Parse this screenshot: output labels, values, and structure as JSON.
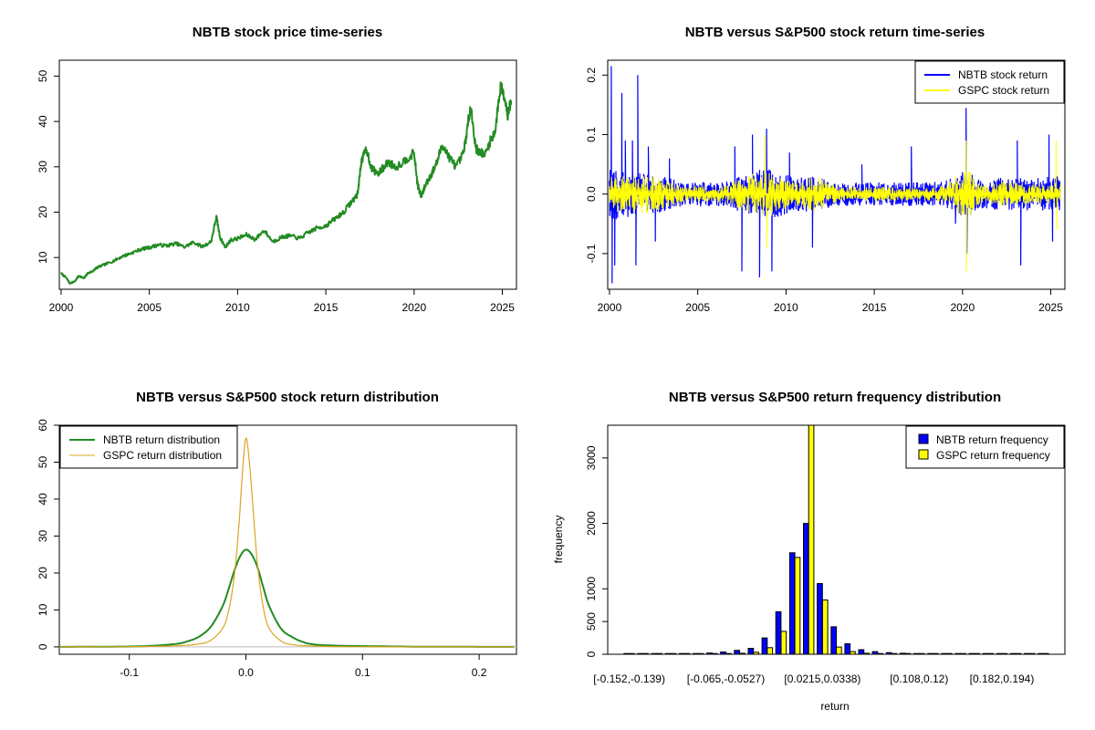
{
  "chart_data": [
    {
      "id": "price",
      "type": "line",
      "title": "NBTB stock price time-series",
      "xlabel": "",
      "ylabel": "",
      "xlim": [
        1999.9,
        2025.8
      ],
      "ylim": [
        3,
        53.5
      ],
      "xticks": [
        2000,
        2005,
        2010,
        2015,
        2020,
        2025
      ],
      "yticks": [
        10,
        20,
        30,
        40,
        50
      ],
      "color": "#228B22",
      "series": [
        {
          "x": [
            2000.0,
            2000.3,
            2000.5,
            2000.8,
            2001.0,
            2001.3,
            2001.5,
            2001.8,
            2002.0,
            2002.5,
            2003.0,
            2003.5,
            2004.0,
            2004.5,
            2005.0,
            2005.5,
            2006.0,
            2006.5,
            2007.0,
            2007.5,
            2008.0,
            2008.5,
            2008.8,
            2009.0,
            2009.3,
            2009.6,
            2010.0,
            2010.5,
            2011.0,
            2011.5,
            2012.0,
            2012.5,
            2013.0,
            2013.5,
            2014.0,
            2014.5,
            2015.0,
            2015.5,
            2016.0,
            2016.5,
            2016.8,
            2017.0,
            2017.3,
            2017.6,
            2018.0,
            2018.5,
            2019.0,
            2019.5,
            2020.0,
            2020.2,
            2020.4,
            2020.7,
            2021.0,
            2021.3,
            2021.6,
            2022.0,
            2022.4,
            2022.8,
            2023.0,
            2023.2,
            2023.5,
            2024.0,
            2024.3,
            2024.6,
            2024.9,
            2025.1,
            2025.3,
            2025.5
          ],
          "y": [
            6.5,
            5.5,
            4.3,
            4.8,
            6.0,
            5.4,
            6.5,
            7.0,
            7.7,
            8.5,
            9.3,
            10.3,
            11.0,
            11.8,
            12.2,
            12.8,
            12.6,
            13.1,
            12.3,
            13.4,
            12.4,
            13.5,
            19.0,
            14.5,
            12.3,
            13.8,
            14.2,
            15.0,
            14.0,
            16.0,
            13.5,
            14.5,
            14.8,
            14.2,
            15.5,
            16.5,
            17.0,
            18.5,
            20.0,
            22.5,
            24.0,
            31.0,
            34.0,
            29.5,
            28.5,
            31.0,
            30.0,
            31.5,
            33.0,
            26.0,
            23.5,
            26.5,
            28.5,
            31.0,
            35.0,
            32.0,
            30.0,
            33.0,
            38.0,
            43.5,
            34.0,
            32.5,
            35.5,
            38.0,
            48.0,
            46.0,
            41.5,
            44.5
          ]
        }
      ]
    },
    {
      "id": "returns",
      "type": "line",
      "title": "NBTB versus S&P500 stock return time-series",
      "xlabel": "",
      "ylabel": "",
      "xlim": [
        1999.9,
        2025.8
      ],
      "ylim": [
        -0.16,
        0.225
      ],
      "xticks": [
        2000,
        2005,
        2010,
        2015,
        2020,
        2025
      ],
      "yticks": [
        -0.1,
        0.0,
        0.1,
        0.2
      ],
      "legend": {
        "position": "top-right"
      },
      "series": [
        {
          "name": "NBTB stock return",
          "color": "#0000FF"
        },
        {
          "name": "GSPC stock return",
          "color": "#FFFF00"
        }
      ],
      "spikes": [
        {
          "series": 0,
          "x": 2000.1,
          "y": 0.215
        },
        {
          "series": 0,
          "x": 2000.15,
          "y": -0.15
        },
        {
          "series": 0,
          "x": 2000.3,
          "y": -0.12
        },
        {
          "series": 0,
          "x": 2000.7,
          "y": 0.17
        },
        {
          "series": 0,
          "x": 2000.9,
          "y": 0.09
        },
        {
          "series": 0,
          "x": 2001.3,
          "y": 0.09
        },
        {
          "series": 0,
          "x": 2001.5,
          "y": -0.12
        },
        {
          "series": 0,
          "x": 2001.6,
          "y": 0.2
        },
        {
          "series": 0,
          "x": 2002.2,
          "y": 0.08
        },
        {
          "series": 0,
          "x": 2002.6,
          "y": -0.08
        },
        {
          "series": 0,
          "x": 2003.4,
          "y": 0.06
        },
        {
          "series": 0,
          "x": 2007.1,
          "y": 0.08
        },
        {
          "series": 0,
          "x": 2007.5,
          "y": -0.13
        },
        {
          "series": 0,
          "x": 2008.1,
          "y": 0.1
        },
        {
          "series": 0,
          "x": 2008.5,
          "y": -0.14
        },
        {
          "series": 0,
          "x": 2008.9,
          "y": 0.11
        },
        {
          "series": 0,
          "x": 2009.2,
          "y": -0.13
        },
        {
          "series": 0,
          "x": 2010.2,
          "y": 0.07
        },
        {
          "series": 0,
          "x": 2011.5,
          "y": -0.09
        },
        {
          "series": 0,
          "x": 2014.3,
          "y": 0.05
        },
        {
          "series": 0,
          "x": 2017.1,
          "y": 0.08
        },
        {
          "series": 0,
          "x": 2019.6,
          "y": -0.05
        },
        {
          "series": 0,
          "x": 2020.2,
          "y": 0.145
        },
        {
          "series": 0,
          "x": 2020.25,
          "y": -0.1
        },
        {
          "series": 0,
          "x": 2023.1,
          "y": 0.09
        },
        {
          "series": 0,
          "x": 2023.3,
          "y": -0.12
        },
        {
          "series": 0,
          "x": 2024.9,
          "y": 0.1
        },
        {
          "series": 0,
          "x": 2025.1,
          "y": -0.08
        },
        {
          "series": 1,
          "x": 2008.8,
          "y": 0.1
        },
        {
          "series": 1,
          "x": 2008.9,
          "y": -0.09
        },
        {
          "series": 1,
          "x": 2020.2,
          "y": 0.09
        },
        {
          "series": 1,
          "x": 2020.22,
          "y": -0.13
        },
        {
          "series": 1,
          "x": 2025.3,
          "y": 0.09
        },
        {
          "series": 1,
          "x": 2025.35,
          "y": -0.06
        }
      ],
      "volatility": [
        {
          "x": 2000.0,
          "nbtb": 0.045,
          "gspc": 0.03
        },
        {
          "x": 2001.0,
          "nbtb": 0.04,
          "gspc": 0.03
        },
        {
          "x": 2002.0,
          "nbtb": 0.035,
          "gspc": 0.035
        },
        {
          "x": 2003.0,
          "nbtb": 0.03,
          "gspc": 0.025
        },
        {
          "x": 2004.0,
          "nbtb": 0.022,
          "gspc": 0.015
        },
        {
          "x": 2006.0,
          "nbtb": 0.02,
          "gspc": 0.012
        },
        {
          "x": 2007.5,
          "nbtb": 0.03,
          "gspc": 0.025
        },
        {
          "x": 2008.8,
          "nbtb": 0.045,
          "gspc": 0.045
        },
        {
          "x": 2009.5,
          "nbtb": 0.04,
          "gspc": 0.03
        },
        {
          "x": 2010.5,
          "nbtb": 0.028,
          "gspc": 0.02
        },
        {
          "x": 2011.6,
          "nbtb": 0.03,
          "gspc": 0.03
        },
        {
          "x": 2013.0,
          "nbtb": 0.02,
          "gspc": 0.012
        },
        {
          "x": 2016.0,
          "nbtb": 0.02,
          "gspc": 0.012
        },
        {
          "x": 2017.5,
          "nbtb": 0.02,
          "gspc": 0.01
        },
        {
          "x": 2019.0,
          "nbtb": 0.022,
          "gspc": 0.015
        },
        {
          "x": 2020.2,
          "nbtb": 0.04,
          "gspc": 0.045
        },
        {
          "x": 2021.0,
          "nbtb": 0.025,
          "gspc": 0.015
        },
        {
          "x": 2022.5,
          "nbtb": 0.03,
          "gspc": 0.022
        },
        {
          "x": 2024.0,
          "nbtb": 0.028,
          "gspc": 0.015
        },
        {
          "x": 2025.5,
          "nbtb": 0.03,
          "gspc": 0.02
        }
      ]
    },
    {
      "id": "density",
      "type": "line",
      "title": "NBTB versus S&P500 stock return distribution",
      "xlabel": "",
      "ylabel": "",
      "xlim": [
        -0.16,
        0.232
      ],
      "ylim": [
        -2,
        60
      ],
      "xticks": [
        -0.1,
        0.0,
        0.1,
        0.2
      ],
      "yticks": [
        0,
        10,
        20,
        30,
        40,
        50,
        60
      ],
      "legend": {
        "position": "top-left"
      },
      "series": [
        {
          "name": "NBTB return distribution",
          "color": "#228B22",
          "x": [
            -0.16,
            -0.1,
            -0.08,
            -0.06,
            -0.05,
            -0.04,
            -0.03,
            -0.02,
            -0.015,
            -0.01,
            -0.005,
            0.0,
            0.005,
            0.01,
            0.015,
            0.02,
            0.03,
            0.04,
            0.05,
            0.06,
            0.08,
            0.1,
            0.15,
            0.23
          ],
          "y": [
            0,
            0.1,
            0.3,
            0.8,
            1.5,
            2.8,
            5.5,
            11.0,
            15.5,
            20.5,
            24.5,
            26.3,
            25.0,
            21.5,
            16.0,
            11.0,
            5.0,
            2.6,
            1.2,
            0.6,
            0.3,
            0.2,
            0.05,
            0
          ]
        },
        {
          "name": "GSPC return distribution",
          "color": "#DAA520",
          "x": [
            -0.16,
            -0.1,
            -0.06,
            -0.04,
            -0.03,
            -0.02,
            -0.015,
            -0.01,
            -0.006,
            -0.003,
            0.0,
            0.003,
            0.006,
            0.01,
            0.015,
            0.02,
            0.03,
            0.04,
            0.06,
            0.1,
            0.23
          ],
          "y": [
            0,
            0.05,
            0.3,
            0.8,
            1.8,
            5.0,
            9.5,
            19.0,
            33.0,
            47.0,
            56.5,
            50.0,
            38.0,
            22.0,
            10.5,
            5.0,
            1.6,
            0.6,
            0.2,
            0.02,
            0
          ]
        }
      ],
      "baseline": 0
    },
    {
      "id": "histogram",
      "type": "bar",
      "title": "NBTB versus S&P500 return frequency distribution",
      "xlabel": "return",
      "ylabel": "frequency",
      "ylim": [
        0,
        3500
      ],
      "yticks": [
        0,
        500,
        1000,
        2000,
        3000
      ],
      "tick_labels": [
        "[-0.152,-0.139)",
        "[-0.065,-0.0527)",
        "[0.0215,0.0338)",
        "[0.108,0.12)",
        "[0.182,0.194)"
      ],
      "tick_label_positions": [
        0,
        7,
        14,
        21,
        27
      ],
      "legend": {
        "position": "top-right"
      },
      "series": [
        {
          "name": "NBTB return frequency",
          "color": "#0000FF",
          "values": [
            2,
            2,
            3,
            4,
            6,
            10,
            20,
            35,
            60,
            90,
            250,
            650,
            1550,
            2000,
            1080,
            420,
            160,
            70,
            40,
            25,
            15,
            10,
            8,
            6,
            4,
            3,
            2,
            2,
            1,
            1,
            1
          ]
        },
        {
          "name": "GSPC return frequency",
          "color": "#FFFF00",
          "values": [
            0,
            0,
            0,
            0,
            1,
            2,
            4,
            8,
            15,
            30,
            100,
            350,
            1480,
            3600,
            830,
            110,
            40,
            15,
            8,
            5,
            3,
            2,
            1,
            1,
            0,
            0,
            0,
            0,
            0,
            0,
            0
          ]
        }
      ]
    }
  ]
}
